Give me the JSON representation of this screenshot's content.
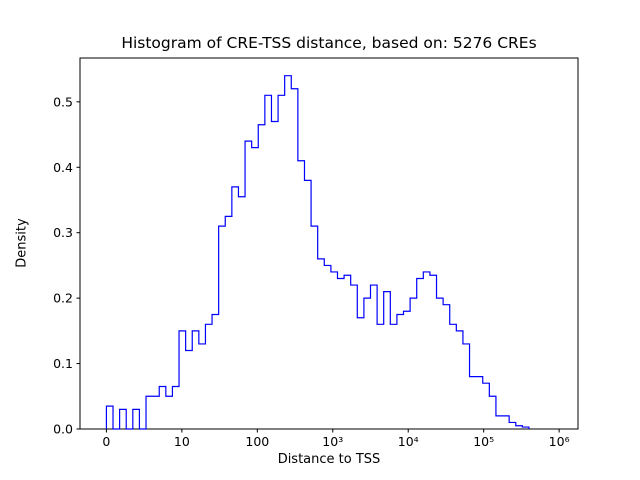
{
  "figure": {
    "title": "Histogram of CRE-TSS distance, based on: 5276 CREs",
    "xlabel": "Distance to TSS",
    "ylabel": "Density"
  },
  "chart_data": {
    "type": "bar",
    "subtype": "step-histogram",
    "title": "Histogram of CRE-TSS distance, based on: 5276 CREs",
    "xlabel": "Distance to TSS",
    "ylabel": "Density",
    "n_samples": 5276,
    "line_color": "#0000ff",
    "frame_color": "#000000",
    "x_scale": "symlog-decades",
    "x_ticks": [
      {
        "u": 0,
        "label": "0"
      },
      {
        "u": 1,
        "label": "10"
      },
      {
        "u": 2,
        "label": "100"
      },
      {
        "u": 3,
        "label": "10³"
      },
      {
        "u": 4,
        "label": "10⁴"
      },
      {
        "u": 5,
        "label": "10⁵"
      },
      {
        "u": 6,
        "label": "10⁶"
      }
    ],
    "y_ticks": [
      "0.0",
      "0.1",
      "0.2",
      "0.3",
      "0.4",
      "0.5"
    ],
    "y_tick_values": [
      0.0,
      0.1,
      0.2,
      0.3,
      0.4,
      0.5
    ],
    "ylim": [
      0,
      0.567
    ],
    "xlim_u": [
      -0.35,
      6.25
    ],
    "bins": {
      "start_u": 0,
      "width_u": 0.0875
    },
    "densities": [
      0.035,
      0.0,
      0.03,
      0.0,
      0.03,
      0.0,
      0.05,
      0.05,
      0.065,
      0.05,
      0.065,
      0.15,
      0.12,
      0.15,
      0.13,
      0.16,
      0.175,
      0.31,
      0.325,
      0.37,
      0.355,
      0.44,
      0.43,
      0.465,
      0.51,
      0.47,
      0.51,
      0.54,
      0.52,
      0.41,
      0.38,
      0.31,
      0.26,
      0.25,
      0.24,
      0.23,
      0.235,
      0.22,
      0.17,
      0.2,
      0.22,
      0.16,
      0.21,
      0.16,
      0.175,
      0.18,
      0.2,
      0.23,
      0.24,
      0.235,
      0.2,
      0.19,
      0.16,
      0.15,
      0.13,
      0.08,
      0.08,
      0.07,
      0.05,
      0.02,
      0.02,
      0.01,
      0.005,
      0.003
    ]
  }
}
